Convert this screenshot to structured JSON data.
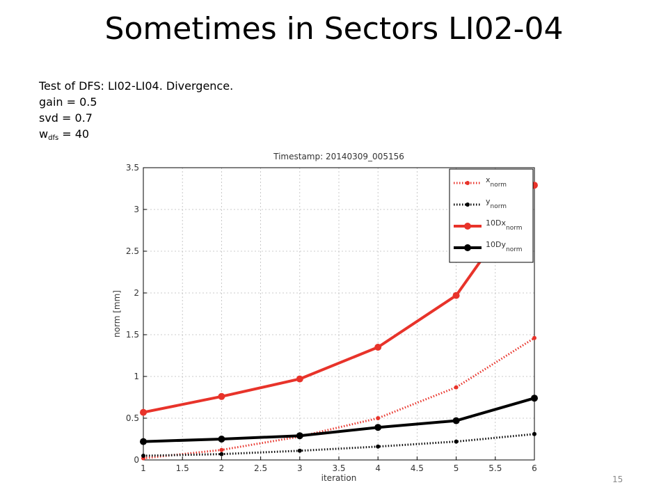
{
  "slide": {
    "title": "Sometimes in Sectors LI02-04",
    "info_line1": "Test of DFS: LI02-LI04. Divergence.",
    "info_line2": "gain = 0.5",
    "info_line3": "svd = 0.7",
    "info_line4_prefix": "w",
    "info_line4_sub": "dfs",
    "info_line4_suffix": " = 40",
    "page_number": "15"
  },
  "chart_data": {
    "type": "line",
    "title": "Timestamp: 20140309_005156",
    "xlabel": "iteration",
    "ylabel": "norm [mm]",
    "xlim": [
      1,
      6
    ],
    "ylim": [
      0,
      3.5
    ],
    "xticks": [
      "1",
      "1.5",
      "2",
      "2.5",
      "3",
      "3.5",
      "4",
      "4.5",
      "5",
      "5.5",
      "6"
    ],
    "yticks": [
      "0",
      "0.5",
      "1",
      "1.5",
      "2",
      "2.5",
      "3",
      "3.5"
    ],
    "grid": true,
    "legend_position": "top-right",
    "x": [
      1,
      2,
      3,
      4,
      5,
      6
    ],
    "series": [
      {
        "name_main": "x",
        "name_sub": "norm",
        "color": "#e8332a",
        "style": "dotted",
        "values": [
          0.02,
          0.12,
          0.28,
          0.5,
          0.87,
          1.46
        ]
      },
      {
        "name_main": "y",
        "name_sub": "norm",
        "color": "#000000",
        "style": "dotted",
        "values": [
          0.05,
          0.07,
          0.11,
          0.16,
          0.22,
          0.31
        ]
      },
      {
        "name_main": "10Dx",
        "name_sub": "norm",
        "color": "#e8332a",
        "style": "solid",
        "values": [
          0.57,
          0.76,
          0.97,
          1.35,
          1.97,
          3.29
        ]
      },
      {
        "name_main": "10Dy",
        "name_sub": "norm",
        "color": "#000000",
        "style": "solid",
        "values": [
          0.22,
          0.25,
          0.29,
          0.39,
          0.47,
          0.74
        ]
      }
    ]
  }
}
